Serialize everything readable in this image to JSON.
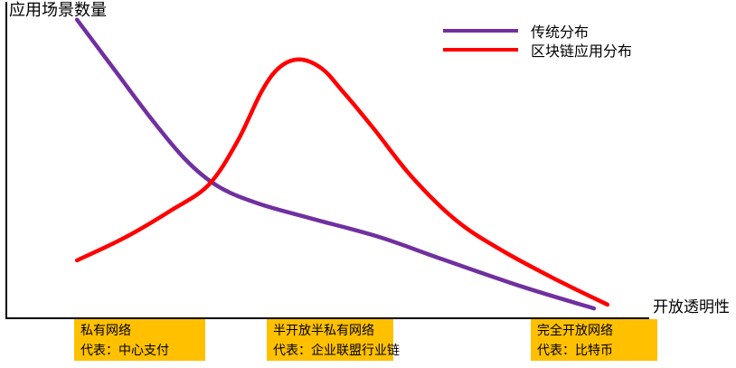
{
  "colors": {
    "traditional": "#7030A0",
    "blockchain": "#FF0000",
    "highlight": "#FFC000",
    "axis": "#000000",
    "text": "#000000"
  },
  "chart_data": {
    "type": "line",
    "title": "",
    "ylabel": "应用场景数量",
    "xlabel": "开放透明性",
    "xlim": [
      0,
      100
    ],
    "ylim": [
      0,
      100
    ],
    "grid": false,
    "axis_ticks": "none",
    "legend_position": "top-right",
    "series": [
      {
        "name": "传统分布",
        "color": "#7030A0",
        "points": [
          [
            11.0,
            93.8
          ],
          [
            16.6,
            78.7
          ],
          [
            22.2,
            63.6
          ],
          [
            27.8,
            50.0
          ],
          [
            32.9,
            41.5
          ],
          [
            39.1,
            36.1
          ],
          [
            47.7,
            31.2
          ],
          [
            57.9,
            25.6
          ],
          [
            67.9,
            18.5
          ],
          [
            80.3,
            9.9
          ],
          [
            91.4,
            3.1
          ]
        ]
      },
      {
        "name": "区块链应用分布",
        "color": "#FF0000",
        "points": [
          [
            11.0,
            18.2
          ],
          [
            18.4,
            25.3
          ],
          [
            25.3,
            33.5
          ],
          [
            31.4,
            41.8
          ],
          [
            35.9,
            55.4
          ],
          [
            39.8,
            71.6
          ],
          [
            42.6,
            79.0
          ],
          [
            45.7,
            81.3
          ],
          [
            49.1,
            78.4
          ],
          [
            52.2,
            71.6
          ],
          [
            57.1,
            59.7
          ],
          [
            63.0,
            44.6
          ],
          [
            70.0,
            30.7
          ],
          [
            77.1,
            21.3
          ],
          [
            85.5,
            12.2
          ],
          [
            93.5,
            4.3
          ]
        ]
      }
    ],
    "annotations": [
      {
        "line1": "私有网络",
        "line2": "代表：中心支付"
      },
      {
        "line1": "半开放半私有网络",
        "line2": "代表：企业联盟行业链"
      },
      {
        "line1": "完全开放网络",
        "line2": "代表：比特币"
      }
    ]
  }
}
